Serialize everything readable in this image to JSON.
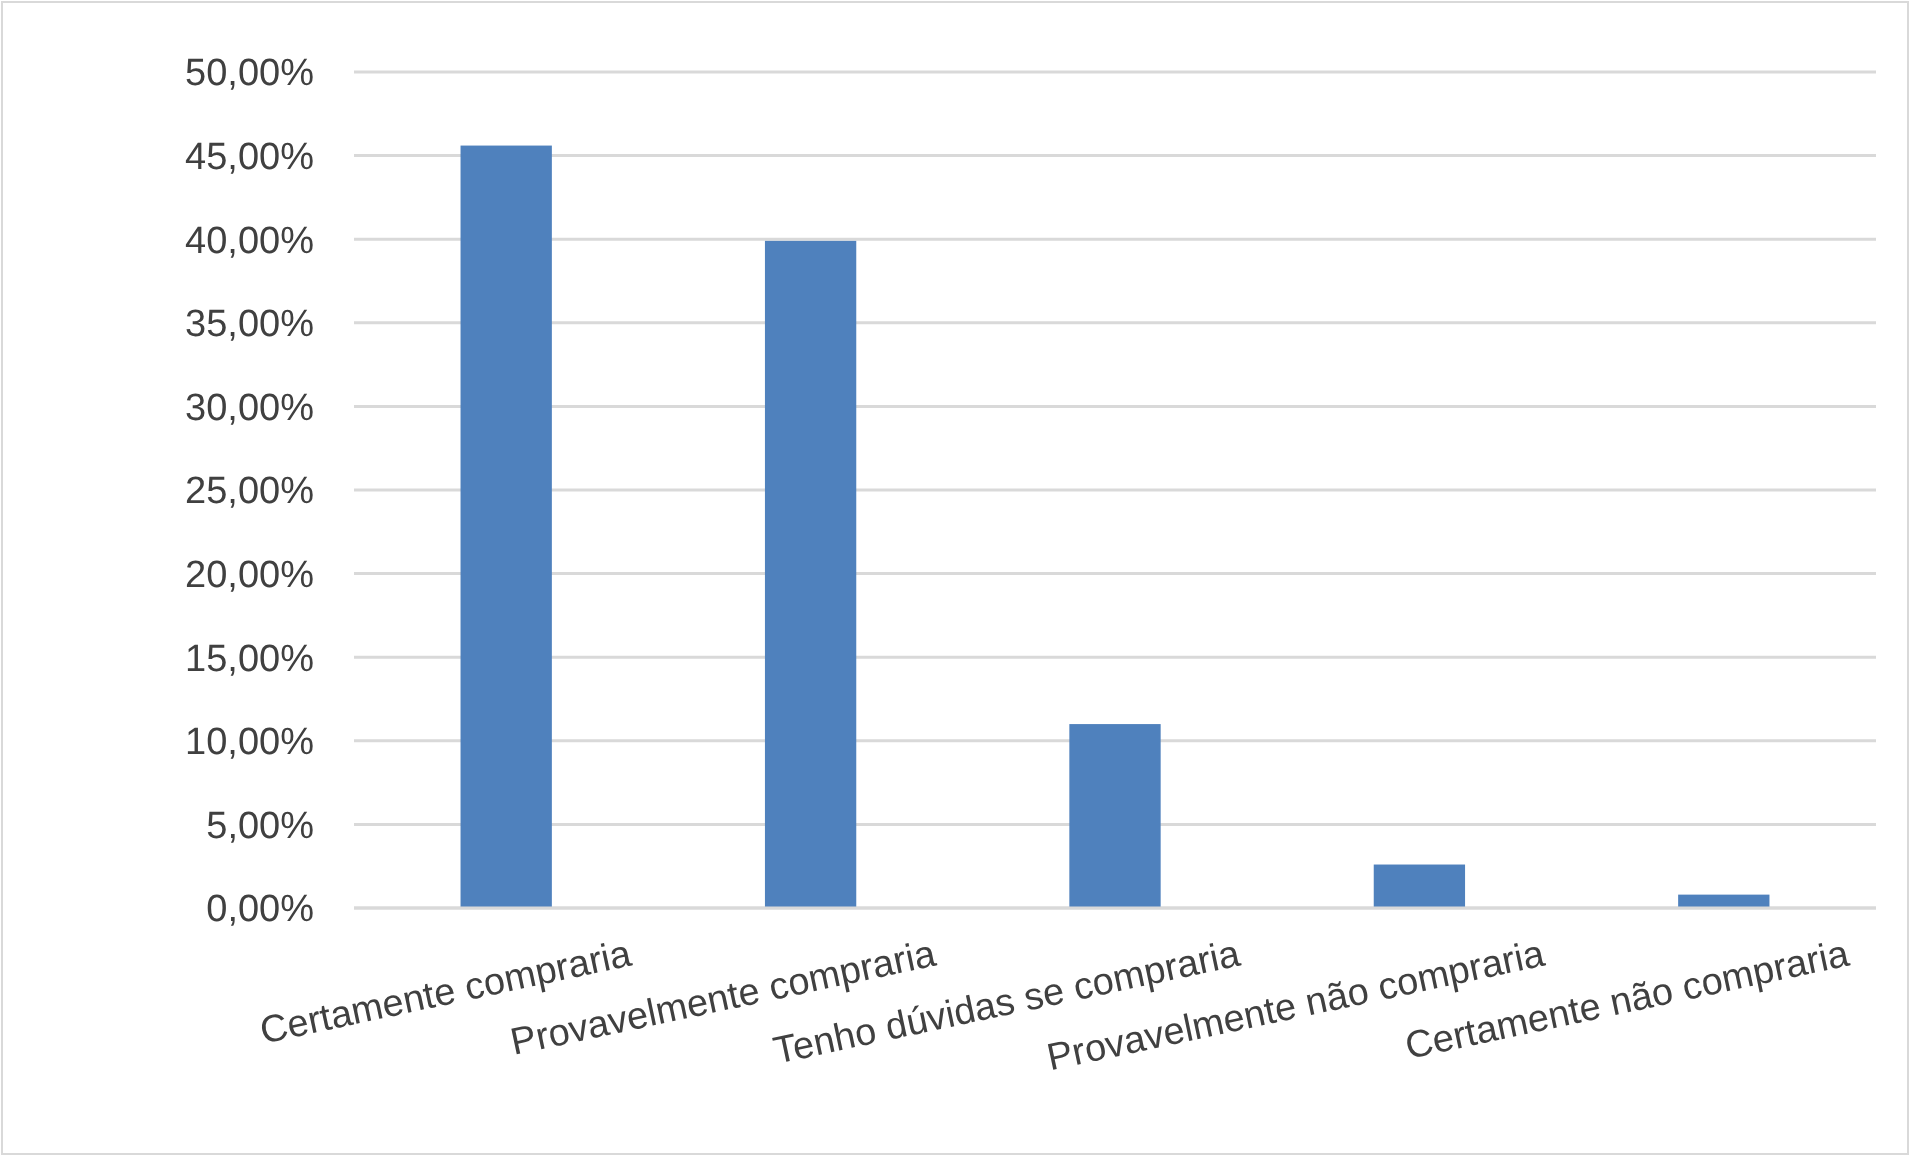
{
  "chart_data": {
    "type": "bar",
    "categories": [
      "Certamente compraria",
      "Provavelmente compraria",
      "Tenho dúvidas se compraria",
      "Provavelmente não compraria",
      "Certamente não compraria"
    ],
    "values": [
      45.6,
      39.9,
      11.0,
      2.6,
      0.8
    ],
    "color": "#4f81bd",
    "ylim": [
      0,
      50
    ],
    "yticks": [
      {
        "value": 0,
        "label": "0,00%"
      },
      {
        "value": 5,
        "label": "5,00%"
      },
      {
        "value": 10,
        "label": "10,00%"
      },
      {
        "value": 15,
        "label": "15,00%"
      },
      {
        "value": 20,
        "label": "20,00%"
      },
      {
        "value": 25,
        "label": "25,00%"
      },
      {
        "value": 30,
        "label": "30,00%"
      },
      {
        "value": 35,
        "label": "35,00%"
      },
      {
        "value": 40,
        "label": "40,00%"
      },
      {
        "value": 45,
        "label": "45,00%"
      },
      {
        "value": 50,
        "label": "50,00%"
      }
    ],
    "grid": "y"
  }
}
